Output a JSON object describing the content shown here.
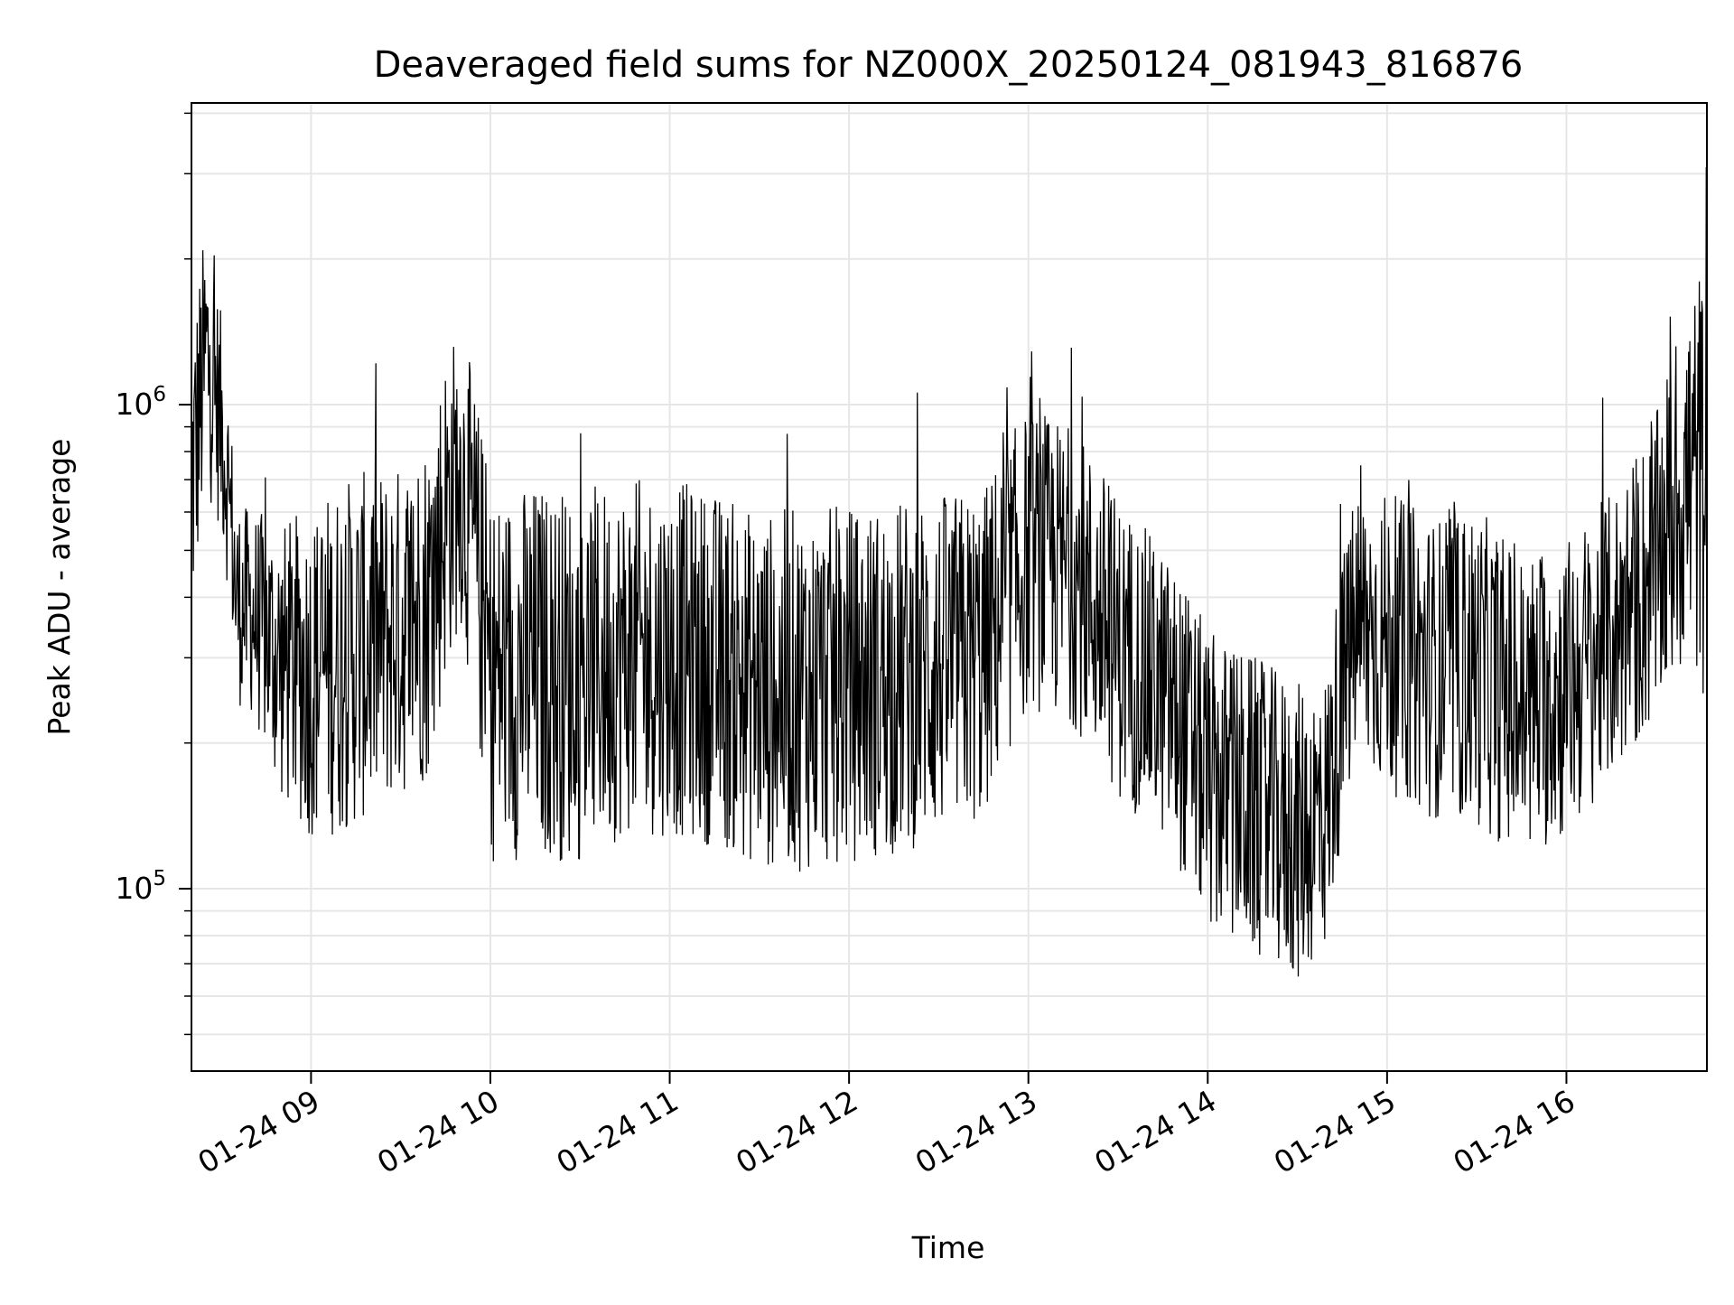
{
  "chart_data": {
    "type": "line",
    "title": "Deaveraged field sums for NZ000X_20250124_081943_816876",
    "xlabel": "Time",
    "ylabel": "Peak ADU - average",
    "yscale": "log",
    "grid": true,
    "legend": "none",
    "line_color": "#000000",
    "grid_color": "#e6e6e6",
    "xlim": [
      "2025-01-24 08:20",
      "2025-01-24 16:47"
    ],
    "ylim": [
      42000,
      4200000
    ],
    "x_ticks": [
      {
        "value": "2025-01-24 09:00",
        "label": "01-24 09"
      },
      {
        "value": "2025-01-24 10:00",
        "label": "01-24 10"
      },
      {
        "value": "2025-01-24 11:00",
        "label": "01-24 11"
      },
      {
        "value": "2025-01-24 12:00",
        "label": "01-24 12"
      },
      {
        "value": "2025-01-24 13:00",
        "label": "01-24 13"
      },
      {
        "value": "2025-01-24 14:00",
        "label": "01-24 14"
      },
      {
        "value": "2025-01-24 15:00",
        "label": "01-24 15"
      },
      {
        "value": "2025-01-24 16:00",
        "label": "01-24 16"
      }
    ],
    "y_ticks": [
      {
        "value": 100000,
        "base": "10",
        "exp": "5"
      },
      {
        "value": 1000000,
        "base": "10",
        "exp": "6"
      }
    ],
    "series": [
      {
        "x": [
          "2025-01-24 08:20",
          "2025-01-24 08:25",
          "2025-01-24 08:30",
          "2025-01-24 08:35",
          "2025-01-24 08:40",
          "2025-01-24 08:50",
          "2025-01-24 09:00",
          "2025-01-24 09:10",
          "2025-01-24 09:20",
          "2025-01-24 09:30",
          "2025-01-24 09:40",
          "2025-01-24 09:45",
          "2025-01-24 09:50",
          "2025-01-24 10:00",
          "2025-01-24 10:15",
          "2025-01-24 10:30",
          "2025-01-24 10:45",
          "2025-01-24 11:00",
          "2025-01-24 11:15",
          "2025-01-24 11:30",
          "2025-01-24 11:45",
          "2025-01-24 12:00",
          "2025-01-24 12:15",
          "2025-01-24 12:30",
          "2025-01-24 12:45",
          "2025-01-24 13:00",
          "2025-01-24 13:15",
          "2025-01-24 13:30",
          "2025-01-24 13:45",
          "2025-01-24 14:00",
          "2025-01-24 14:15",
          "2025-01-24 14:30",
          "2025-01-24 14:40",
          "2025-01-24 14:50",
          "2025-01-24 15:00",
          "2025-01-24 15:15",
          "2025-01-24 15:30",
          "2025-01-24 15:45",
          "2025-01-24 16:00",
          "2025-01-24 16:15",
          "2025-01-24 16:30",
          "2025-01-24 16:40",
          "2025-01-24 16:47"
        ],
        "values": [
          700000,
          1100000,
          900000,
          400000,
          380000,
          300000,
          280000,
          320000,
          350000,
          380000,
          420000,
          600000,
          700000,
          320000,
          330000,
          320000,
          320000,
          320000,
          290000,
          260000,
          270000,
          280000,
          290000,
          300000,
          320000,
          520000,
          480000,
          340000,
          280000,
          180000,
          160000,
          140000,
          150000,
          360000,
          350000,
          310000,
          320000,
          250000,
          280000,
          330000,
          430000,
          700000,
          800000
        ],
        "spread_low": [
          0.45,
          0.6,
          0.6,
          0.6,
          0.6,
          0.5,
          0.45,
          0.4,
          0.4,
          0.4,
          0.4,
          0.45,
          0.5,
          0.35,
          0.35,
          0.35,
          0.4,
          0.4,
          0.42,
          0.42,
          0.4,
          0.4,
          0.4,
          0.42,
          0.42,
          0.45,
          0.45,
          0.45,
          0.45,
          0.45,
          0.45,
          0.45,
          0.5,
          0.5,
          0.45,
          0.45,
          0.42,
          0.45,
          0.45,
          0.5,
          0.5,
          0.4,
          0.3
        ],
        "spread_high": [
          2.0,
          2.2,
          1.7,
          1.6,
          1.6,
          1.9,
          2.2,
          2.2,
          2.1,
          2.0,
          2.2,
          2.2,
          2.1,
          2.1,
          2.1,
          2.1,
          2.2,
          2.2,
          2.3,
          2.3,
          2.3,
          2.2,
          2.2,
          2.2,
          2.1,
          1.9,
          1.9,
          1.9,
          1.8,
          1.9,
          1.9,
          1.9,
          1.9,
          1.9,
          1.9,
          1.9,
          1.9,
          2.0,
          1.9,
          2.0,
          2.2,
          2.4,
          2.6
        ]
      }
    ]
  }
}
